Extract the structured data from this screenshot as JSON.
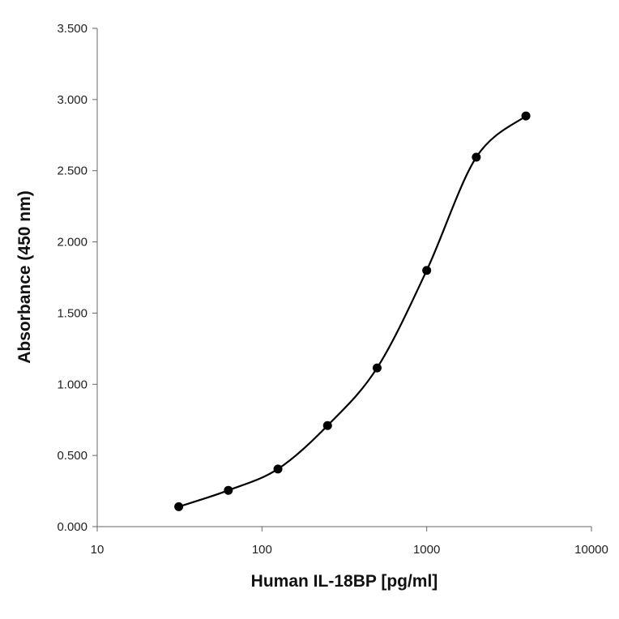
{
  "chart_data": {
    "type": "scatter",
    "title": "",
    "xlabel": "Human IL-18BP [pg/ml]",
    "ylabel": "Absorbance (450 nm)",
    "x_scale": "log",
    "xlim": [
      10,
      10000
    ],
    "ylim": [
      0,
      3.5
    ],
    "x_ticks": [
      "10",
      "100",
      "1000",
      "10000"
    ],
    "x_tick_values": [
      10,
      100,
      1000,
      10000
    ],
    "y_ticks": [
      "0.000",
      "0.500",
      "1.000",
      "1.500",
      "2.000",
      "2.500",
      "3.000",
      "3.500"
    ],
    "y_tick_values": [
      0,
      0.5,
      1.0,
      1.5,
      2.0,
      2.5,
      3.0,
      3.5
    ],
    "grid": false,
    "legend": "none",
    "series": [
      {
        "x": [
          31.25,
          62.5,
          125,
          250,
          500,
          1000,
          2000,
          4000
        ],
        "y": [
          0.14,
          0.255,
          0.405,
          0.71,
          1.115,
          1.8,
          2.595,
          2.885
        ],
        "marker": "circle",
        "line": "smooth",
        "color": "#000000"
      }
    ]
  }
}
